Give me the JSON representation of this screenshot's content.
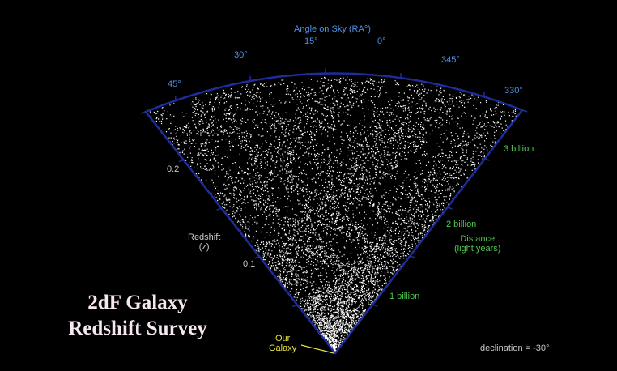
{
  "title": {
    "line1": "2dF Galaxy",
    "line2": "Redshift Survey"
  },
  "angle_axis": {
    "label": "Angle on Sky (RA°)",
    "ticks": [
      "45°",
      "30°",
      "15°",
      "0°",
      "345°",
      "330°"
    ]
  },
  "redshift_axis": {
    "label_line1": "Redshift",
    "label_line2": "(z)",
    "ticks": [
      "0.2",
      "0.1"
    ]
  },
  "distance_axis": {
    "label_line1": "Distance",
    "label_line2": "(light years)",
    "ticks": [
      "3 billion",
      "2 billion",
      "1 billion"
    ]
  },
  "our_galaxy": {
    "line1": "Our",
    "line2": "Galaxy"
  },
  "declination": "declination = -30°",
  "colors": {
    "background": "#000000",
    "boundary": "#1e2d9c",
    "angle_labels": "#4f8fe6",
    "distance_labels": "#4ec94e",
    "redshift_labels": "#c8c8c8",
    "galaxy_marker": "#e8e23c",
    "points": "#ffffff"
  }
}
